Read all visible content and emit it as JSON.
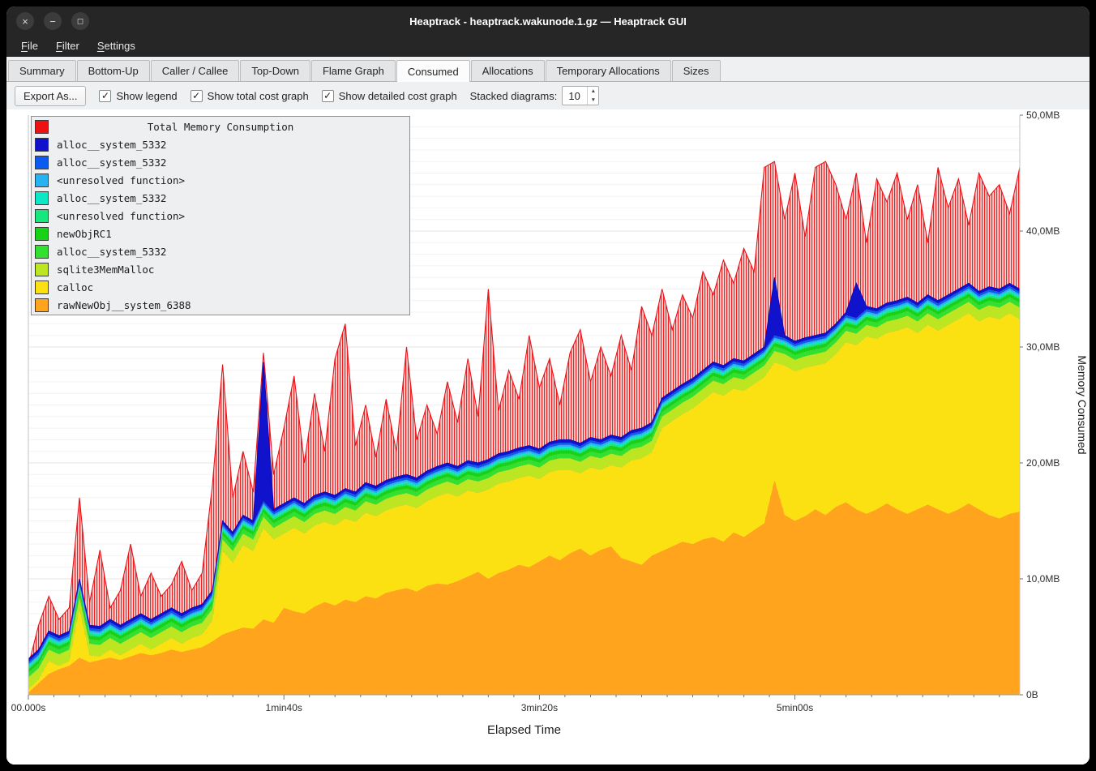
{
  "window": {
    "title": "Heaptrack - heaptrack.wakunode.1.gz — Heaptrack GUI"
  },
  "menubar": {
    "items": [
      {
        "mnemonic": "F",
        "rest": "ile"
      },
      {
        "mnemonic": "F",
        "rest": "ilter"
      },
      {
        "mnemonic": "S",
        "rest": "ettings"
      }
    ]
  },
  "tabs": [
    {
      "label": "Summary",
      "active": false
    },
    {
      "label": "Bottom-Up",
      "active": false
    },
    {
      "label": "Caller / Callee",
      "active": false
    },
    {
      "label": "Top-Down",
      "active": false
    },
    {
      "label": "Flame Graph",
      "active": false
    },
    {
      "label": "Consumed",
      "active": true
    },
    {
      "label": "Allocations",
      "active": false
    },
    {
      "label": "Temporary Allocations",
      "active": false
    },
    {
      "label": "Sizes",
      "active": false
    }
  ],
  "toolbar": {
    "export_label": "Export As...",
    "checkboxes": [
      {
        "label": "Show legend",
        "checked": true
      },
      {
        "label": "Show total cost graph",
        "checked": true
      },
      {
        "label": "Show detailed cost graph",
        "checked": true
      }
    ],
    "stacked_label": "Stacked diagrams:",
    "stacked_value": "10"
  },
  "chart_data": {
    "type": "area",
    "title": "Total Memory Consumption",
    "xlabel": "Elapsed Time",
    "ylabel": "Memory Consumed",
    "xlim": [
      0,
      388
    ],
    "ylim": [
      0,
      50
    ],
    "grid": true,
    "x_ticks": [
      {
        "t": 0,
        "label": "00.000s"
      },
      {
        "t": 100,
        "label": "1min40s"
      },
      {
        "t": 200,
        "label": "3min20s"
      },
      {
        "t": 300,
        "label": "5min00s"
      }
    ],
    "y_ticks": [
      {
        "v": 0,
        "label": "0B"
      },
      {
        "v": 10,
        "label": "10,0MB"
      },
      {
        "v": 20,
        "label": "20,0MB"
      },
      {
        "v": 30,
        "label": "30,0MB"
      },
      {
        "v": 40,
        "label": "40,0MB"
      },
      {
        "v": 50,
        "label": "50,0MB"
      }
    ],
    "x": [
      0,
      4,
      8,
      12,
      16,
      20,
      24,
      28,
      32,
      36,
      40,
      44,
      48,
      52,
      56,
      60,
      64,
      68,
      72,
      76,
      80,
      84,
      88,
      92,
      96,
      100,
      104,
      108,
      112,
      116,
      120,
      124,
      128,
      132,
      136,
      140,
      144,
      148,
      152,
      156,
      160,
      164,
      168,
      172,
      176,
      180,
      184,
      188,
      192,
      196,
      200,
      204,
      208,
      212,
      216,
      220,
      224,
      228,
      232,
      236,
      240,
      244,
      248,
      252,
      256,
      260,
      264,
      268,
      272,
      276,
      280,
      284,
      288,
      292,
      296,
      300,
      304,
      308,
      312,
      316,
      320,
      324,
      328,
      332,
      336,
      340,
      344,
      348,
      352,
      356,
      360,
      364,
      368,
      372,
      376,
      380,
      384,
      388
    ],
    "stack_top": [
      1.5,
      3.5,
      5.5,
      5,
      5.5,
      10,
      6,
      5.5,
      6.5,
      6,
      6.5,
      7,
      6.5,
      7,
      7.5,
      7,
      7.5,
      7.8,
      9,
      15,
      14,
      15.5,
      15,
      28.7,
      16,
      16.5,
      17,
      16.5,
      17.2,
      17.5,
      17.2,
      17.8,
      17.5,
      18.3,
      18,
      18.5,
      18.8,
      19,
      18.7,
      19.3,
      19.7,
      20,
      19.7,
      20.2,
      20,
      20.3,
      20.8,
      21,
      21.3,
      21.5,
      21.2,
      21.8,
      22,
      22,
      21.7,
      22.2,
      22,
      22.4,
      22.2,
      22.8,
      23,
      23.5,
      25.6,
      26.2,
      26.8,
      27.3,
      28,
      28.7,
      28.4,
      29,
      28.8,
      29.4,
      30,
      36,
      31,
      30.5,
      30.8,
      31,
      31.2,
      32,
      33,
      35.5,
      33.5,
      33.3,
      33.8,
      34,
      34.3,
      33.8,
      34.5,
      34,
      34.5,
      35,
      35.5,
      34.8,
      35.2,
      35,
      35.5,
      35
    ],
    "total": {
      "name": "Total Memory Consumption",
      "color": "#e8141b",
      "values": [
        2.5,
        6,
        8.5,
        6.5,
        7.5,
        17,
        8,
        12.5,
        7.5,
        9,
        13,
        8.5,
        10.5,
        8.5,
        9.5,
        11.5,
        9,
        10.5,
        18,
        28.5,
        17,
        21,
        17.5,
        29.5,
        19,
        23,
        27.5,
        20,
        26,
        21,
        29,
        32,
        21.5,
        25,
        20.5,
        25.5,
        21,
        30,
        22,
        25,
        22.5,
        27,
        23.5,
        29,
        24,
        35,
        24.5,
        28,
        25.5,
        31,
        26.5,
        29,
        25,
        29.5,
        31.5,
        27,
        30,
        27.5,
        31,
        28,
        33.5,
        31,
        35,
        31.5,
        34.5,
        32.5,
        36.5,
        34.5,
        37.5,
        35.5,
        38.5,
        36.5,
        45.5,
        46,
        41,
        45,
        39.5,
        45.5,
        46,
        44,
        41,
        45,
        39,
        44.5,
        42.5,
        45,
        41,
        44,
        39,
        45.5,
        42,
        44.5,
        40.5,
        45,
        43,
        44,
        41.5,
        45.5
      ]
    },
    "stacked": [
      {
        "name": "rawNewObj__system_6388",
        "color": "#ffa41c",
        "values": [
          0.2,
          1,
          1.8,
          2.2,
          2.5,
          3.2,
          2.8,
          3,
          3.2,
          3,
          3.3,
          3.6,
          3.4,
          3.6,
          3.9,
          3.7,
          3.9,
          4.1,
          4.6,
          5.2,
          5.5,
          5.8,
          5.7,
          6.5,
          6.2,
          7.5,
          7.2,
          7,
          7.6,
          8,
          7.7,
          8.2,
          8,
          8.5,
          8.3,
          8.8,
          9,
          9.2,
          8.9,
          9.4,
          9.6,
          9.5,
          9.8,
          10.2,
          10.6,
          10,
          10.5,
          10.8,
          11.2,
          11,
          11.5,
          12,
          11.6,
          12.2,
          12.6,
          12,
          12.5,
          12.8,
          11.8,
          11.5,
          11.2,
          12,
          12.4,
          12.8,
          13.2,
          13,
          13.4,
          13.6,
          13.2,
          14,
          13.6,
          14.2,
          14.8,
          18.5,
          15.5,
          15,
          15.4,
          16,
          15.5,
          16.2,
          16.6,
          16,
          15.6,
          16,
          16.5,
          16,
          15.6,
          16,
          16.4,
          16,
          15.6,
          16,
          16.5,
          16,
          15.5,
          15.2,
          15.6,
          15.8
        ]
      },
      {
        "name": "calloc",
        "color": "#fbe112",
        "residual": true
      },
      {
        "name": "sqlite3MemMalloc",
        "color": "#bce622",
        "const": 1.0
      },
      {
        "name": "alloc__system_5332",
        "color": "#31e031",
        "const": 0.4
      },
      {
        "name": "newObjRC1",
        "color": "#16d316",
        "const": 0.3
      },
      {
        "name": "<unresolved function>",
        "color": "#16e87e",
        "const": 0.15
      },
      {
        "name": "alloc__system_5332",
        "color": "#0de8c4",
        "const": 0.15
      },
      {
        "name": "<unresolved function>",
        "color": "#29b2f2",
        "const": 0.15
      },
      {
        "name": "alloc__system_5332",
        "color": "#0c5bf0",
        "const": 0.2
      },
      {
        "name": "alloc__system_5332",
        "color": "#1012cc",
        "values": [
          0.25,
          0.25,
          0.25,
          0.25,
          0.25,
          0.25,
          0.25,
          0.25,
          0.25,
          0.25,
          0.25,
          0.25,
          0.25,
          0.25,
          0.25,
          0.25,
          0.25,
          0.25,
          0.25,
          0.25,
          0.25,
          0.25,
          0.25,
          12,
          0.25,
          0.25,
          0.25,
          0.25,
          0.25,
          0.25,
          0.25,
          0.25,
          0.25,
          0.25,
          0.25,
          0.25,
          0.25,
          0.25,
          0.25,
          0.25,
          0.25,
          0.25,
          0.25,
          0.25,
          0.25,
          0.25,
          0.25,
          0.25,
          0.25,
          0.25,
          0.25,
          0.25,
          0.25,
          0.25,
          0.25,
          0.25,
          0.25,
          0.25,
          0.25,
          0.25,
          0.25,
          0.25,
          0.25,
          0.25,
          0.25,
          0.25,
          0.25,
          0.25,
          0.25,
          0.25,
          0.25,
          0.25,
          0.25,
          5,
          0.25,
          0.25,
          0.25,
          0.25,
          0.25,
          0.25,
          0.25,
          3,
          0.25,
          0.25,
          0.25,
          0.25,
          0.25,
          0.25,
          0.25,
          0.25,
          0.25,
          0.25,
          0.25,
          0.25,
          0.25,
          0.25,
          0.25,
          0.25
        ]
      }
    ],
    "legend": {
      "title": "Total Memory Consumption",
      "title_color": "#ee1111",
      "items": [
        {
          "label": "alloc__system_5332",
          "color": "#1012cc"
        },
        {
          "label": "alloc__system_5332",
          "color": "#0c5bf0"
        },
        {
          "label": "<unresolved function>",
          "color": "#29b2f2"
        },
        {
          "label": "alloc__system_5332",
          "color": "#0de8c4"
        },
        {
          "label": "<unresolved function>",
          "color": "#16e87e"
        },
        {
          "label": "newObjRC1",
          "color": "#16d316"
        },
        {
          "label": "alloc__system_5332",
          "color": "#31e031"
        },
        {
          "label": "sqlite3MemMalloc",
          "color": "#bce622"
        },
        {
          "label": "calloc",
          "color": "#fbe112"
        },
        {
          "label": "rawNewObj__system_6388",
          "color": "#ffa41c"
        }
      ]
    }
  }
}
